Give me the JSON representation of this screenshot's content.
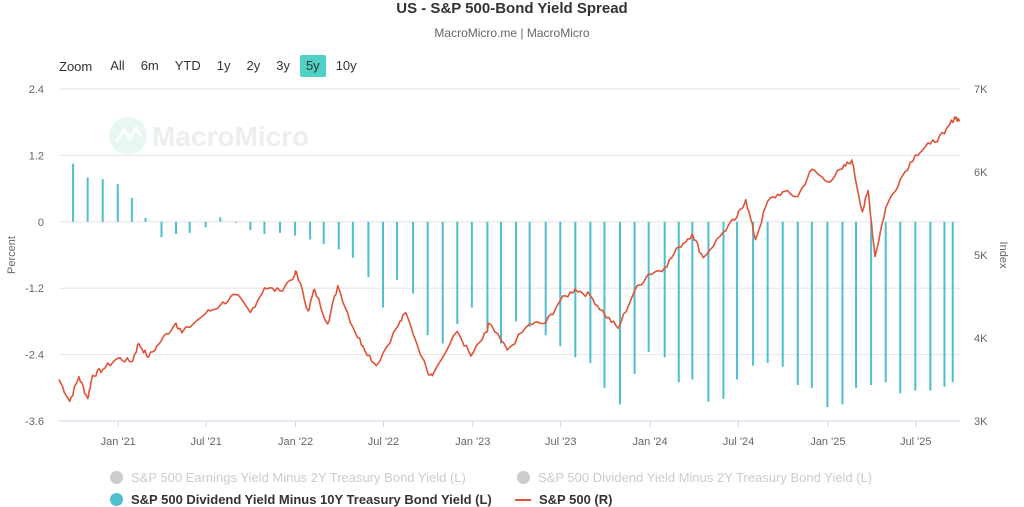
{
  "header": {
    "title": "US - S&P 500-Bond Yield Spread",
    "subtitle": "MacroMicro.me | MacroMicro"
  },
  "watermark": "MacroMicro",
  "zoom": {
    "label": "Zoom",
    "buttons": [
      "All",
      "6m",
      "YTD",
      "1y",
      "2y",
      "3y",
      "5y",
      "10y"
    ],
    "active": "5y"
  },
  "colors": {
    "spread_bar": "#4ebfcf",
    "sp500_line": "#e0533a",
    "inactive": "#cccccc",
    "active_zoom": "#4fd1c5"
  },
  "chart_data": {
    "type": "bar+line",
    "x_tick_labels": [
      "Jan '21",
      "Jul '21",
      "Jan '22",
      "Jul '22",
      "Jan '23",
      "Jul '23",
      "Jan '24",
      "Jul '24",
      "Jan '25",
      "Jul '25"
    ],
    "ylabel": "Percent",
    "y2label": "Index",
    "ylim": [
      -3.6,
      2.4
    ],
    "y_ticks": [
      "-3.6",
      "-2.4",
      "-1.2",
      "0",
      "1.2",
      "2.4"
    ],
    "y2lim": [
      3000,
      7000
    ],
    "y2_ticks": [
      "3K",
      "4K",
      "5K",
      "6K",
      "7K"
    ],
    "x_range": [
      "2020-09-01",
      "2025-09-30"
    ],
    "series": [
      {
        "name": "S&P 500 Earnings Yield Minus 2Y Treasury Bond Yield (L)",
        "visible": false,
        "values": []
      },
      {
        "name": "S&P 500 Dividend Yield Minus 2Y Treasury Bond Yield (L)",
        "visible": false,
        "values": []
      },
      {
        "name": "S&P 500 Dividend Yield Minus 10Y Treasury Bond Yield (L)",
        "type": "bar",
        "axis": "left",
        "visible": true,
        "points": [
          [
            "2020-09-30",
            1.05
          ],
          [
            "2020-10-30",
            0.8
          ],
          [
            "2020-11-30",
            0.77
          ],
          [
            "2020-12-31",
            0.68
          ],
          [
            "2021-01-29",
            0.43
          ],
          [
            "2021-02-26",
            0.07
          ],
          [
            "2021-03-31",
            -0.28
          ],
          [
            "2021-04-30",
            -0.22
          ],
          [
            "2021-05-28",
            -0.2
          ],
          [
            "2021-06-30",
            -0.1
          ],
          [
            "2021-07-30",
            0.08
          ],
          [
            "2021-08-31",
            0.0
          ],
          [
            "2021-09-30",
            -0.15
          ],
          [
            "2021-10-29",
            -0.22
          ],
          [
            "2021-11-30",
            -0.2
          ],
          [
            "2021-12-31",
            -0.25
          ],
          [
            "2022-01-31",
            -0.32
          ],
          [
            "2022-02-28",
            -0.4
          ],
          [
            "2022-03-31",
            -0.5
          ],
          [
            "2022-04-29",
            -0.65
          ],
          [
            "2022-05-31",
            -1.0
          ],
          [
            "2022-06-30",
            -1.55
          ],
          [
            "2022-07-29",
            -1.05
          ],
          [
            "2022-08-31",
            -1.3
          ],
          [
            "2022-09-30",
            -2.05
          ],
          [
            "2022-10-31",
            -2.2
          ],
          [
            "2022-11-30",
            -1.85
          ],
          [
            "2022-12-30",
            -1.55
          ],
          [
            "2023-01-31",
            -1.92
          ],
          [
            "2023-02-28",
            -2.2
          ],
          [
            "2023-03-31",
            -1.8
          ],
          [
            "2023-04-28",
            -1.9
          ],
          [
            "2023-05-31",
            -2.05
          ],
          [
            "2023-06-30",
            -2.25
          ],
          [
            "2023-07-31",
            -2.45
          ],
          [
            "2023-08-31",
            -2.55
          ],
          [
            "2023-09-29",
            -3.0
          ],
          [
            "2023-10-31",
            -3.3
          ],
          [
            "2023-11-30",
            -2.75
          ],
          [
            "2023-12-29",
            -2.35
          ],
          [
            "2024-01-31",
            -2.45
          ],
          [
            "2024-02-29",
            -2.9
          ],
          [
            "2024-03-28",
            -2.85
          ],
          [
            "2024-04-30",
            -3.25
          ],
          [
            "2024-05-31",
            -3.2
          ],
          [
            "2024-06-28",
            -2.85
          ],
          [
            "2024-07-31",
            -2.6
          ],
          [
            "2024-08-30",
            -2.55
          ],
          [
            "2024-09-30",
            -2.62
          ],
          [
            "2024-10-31",
            -2.95
          ],
          [
            "2024-11-29",
            -3.0
          ],
          [
            "2024-12-31",
            -3.35
          ],
          [
            "2025-01-31",
            -3.3
          ],
          [
            "2025-02-28",
            -3.0
          ],
          [
            "2025-03-31",
            -2.95
          ],
          [
            "2025-04-30",
            -2.9
          ],
          [
            "2025-05-30",
            -3.1
          ],
          [
            "2025-06-30",
            -3.05
          ],
          [
            "2025-07-31",
            -3.05
          ],
          [
            "2025-08-29",
            -2.98
          ],
          [
            "2025-09-15",
            -2.9
          ]
        ]
      },
      {
        "name": "S&P 500 (R)",
        "type": "line",
        "axis": "right",
        "visible": true,
        "points": [
          [
            "2020-09-01",
            3500
          ],
          [
            "2020-09-23",
            3237
          ],
          [
            "2020-10-12",
            3534
          ],
          [
            "2020-10-30",
            3270
          ],
          [
            "2020-11-09",
            3550
          ],
          [
            "2020-11-30",
            3621
          ],
          [
            "2020-12-31",
            3756
          ],
          [
            "2021-01-29",
            3714
          ],
          [
            "2021-02-12",
            3934
          ],
          [
            "2021-03-04",
            3768
          ],
          [
            "2021-03-31",
            3972
          ],
          [
            "2021-04-30",
            4181
          ],
          [
            "2021-05-12",
            4063
          ],
          [
            "2021-06-30",
            4297
          ],
          [
            "2021-07-30",
            4395
          ],
          [
            "2021-08-31",
            4522
          ],
          [
            "2021-09-30",
            4307
          ],
          [
            "2021-10-29",
            4605
          ],
          [
            "2021-11-30",
            4567
          ],
          [
            "2021-12-31",
            4766
          ],
          [
            "2022-01-03",
            4796
          ],
          [
            "2022-01-27",
            4326
          ],
          [
            "2022-02-09",
            4587
          ],
          [
            "2022-03-08",
            4170
          ],
          [
            "2022-03-29",
            4631
          ],
          [
            "2022-04-29",
            4131
          ],
          [
            "2022-05-20",
            3901
          ],
          [
            "2022-06-16",
            3667
          ],
          [
            "2022-07-29",
            4130
          ],
          [
            "2022-08-16",
            4305
          ],
          [
            "2022-09-30",
            3586
          ],
          [
            "2022-10-12",
            3577
          ],
          [
            "2022-11-30",
            4080
          ],
          [
            "2022-12-28",
            3783
          ],
          [
            "2023-01-31",
            4077
          ],
          [
            "2023-02-02",
            4179
          ],
          [
            "2023-03-13",
            3855
          ],
          [
            "2023-04-28",
            4169
          ],
          [
            "2023-05-31",
            4180
          ],
          [
            "2023-06-30",
            4450
          ],
          [
            "2023-07-31",
            4589
          ],
          [
            "2023-08-31",
            4508
          ],
          [
            "2023-09-29",
            4288
          ],
          [
            "2023-10-27",
            4117
          ],
          [
            "2023-11-30",
            4568
          ],
          [
            "2023-12-29",
            4770
          ],
          [
            "2024-01-31",
            4846
          ],
          [
            "2024-02-29",
            5096
          ],
          [
            "2024-03-28",
            5254
          ],
          [
            "2024-04-19",
            4967
          ],
          [
            "2024-05-31",
            5278
          ],
          [
            "2024-06-28",
            5460
          ],
          [
            "2024-07-16",
            5667
          ],
          [
            "2024-08-05",
            5186
          ],
          [
            "2024-08-30",
            5648
          ],
          [
            "2024-09-30",
            5762
          ],
          [
            "2024-10-31",
            5705
          ],
          [
            "2024-11-29",
            6032
          ],
          [
            "2024-12-31",
            5882
          ],
          [
            "2025-01-31",
            6040
          ],
          [
            "2025-02-19",
            6144
          ],
          [
            "2025-03-13",
            5521
          ],
          [
            "2025-03-25",
            5776
          ],
          [
            "2025-04-08",
            4982
          ],
          [
            "2025-04-30",
            5569
          ],
          [
            "2025-05-30",
            5912
          ],
          [
            "2025-06-30",
            6205
          ],
          [
            "2025-07-31",
            6339
          ],
          [
            "2025-08-29",
            6460
          ],
          [
            "2025-09-19",
            6664
          ],
          [
            "2025-09-30",
            6620
          ]
        ]
      }
    ]
  }
}
